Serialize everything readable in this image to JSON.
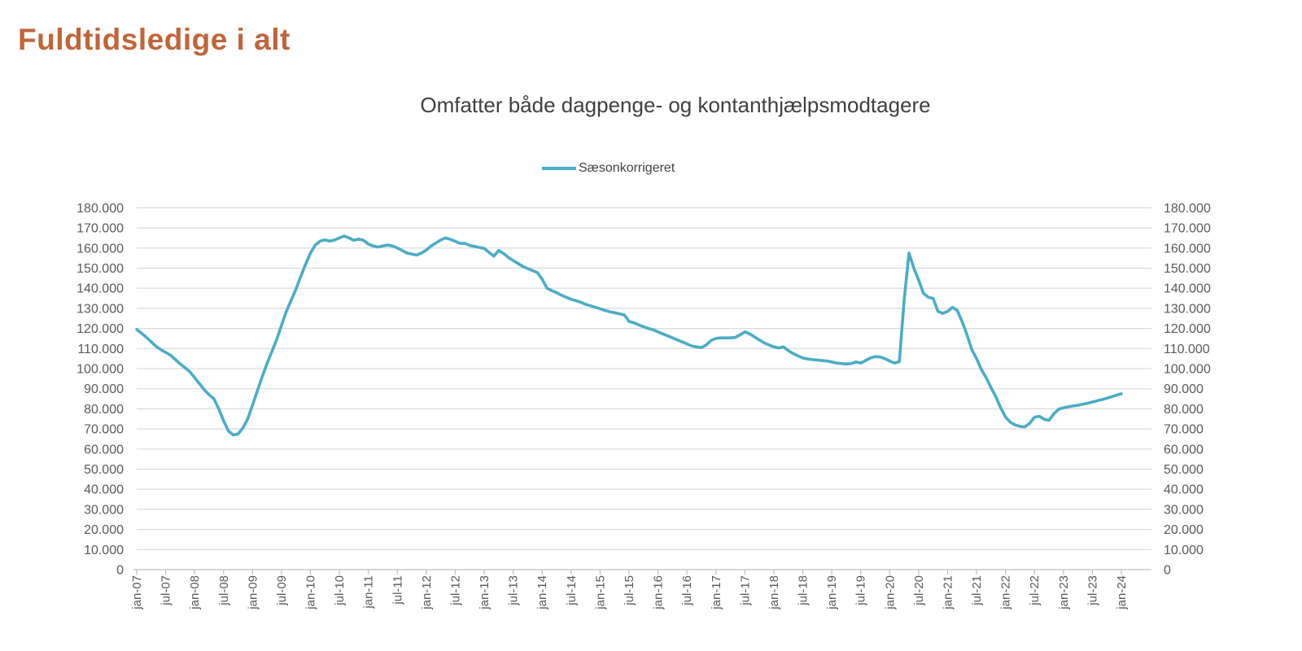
{
  "page": {
    "title": "Fuldtidsledige i alt",
    "title_color": "#C0653A"
  },
  "legend": {
    "label": "Sæsonkorrigeret"
  },
  "chart_data": {
    "type": "line",
    "title": "Omfatter både dagpenge- og kontanthjælpsmodtagere",
    "xlabel": "",
    "ylabel": "",
    "x_start": "jan-07",
    "x_end": "jan-24",
    "x_interval": "month",
    "ylim": [
      0,
      180000
    ],
    "y_step": 10000,
    "grid": true,
    "dual_y_axis": true,
    "legend_position": "top-center",
    "y_tick_labels": [
      "0",
      "10.000",
      "20.000",
      "30.000",
      "40.000",
      "50.000",
      "60.000",
      "70.000",
      "80.000",
      "90.000",
      "100.000",
      "110.000",
      "120.000",
      "130.000",
      "140.000",
      "150.000",
      "160.000",
      "170.000",
      "180.000"
    ],
    "x_tick_labels": [
      "jan-07",
      "jul-07",
      "jan-08",
      "jul-08",
      "jan-09",
      "jul-09",
      "jan-10",
      "jul-10",
      "jan-11",
      "jul-11",
      "jan-12",
      "jul-12",
      "jan-13",
      "jul-13",
      "jan-14",
      "jul-14",
      "jan-15",
      "jul-15",
      "jan-16",
      "jul-16",
      "jan-17",
      "jul-17",
      "jan-18",
      "jul-18",
      "jan-19",
      "jul-19",
      "jan-20",
      "jul-20",
      "jan-21",
      "jul-21",
      "jan-22",
      "jul-22",
      "jan-23",
      "jul-23",
      "jan-24"
    ],
    "x_tick_every_n_points": 6,
    "colors": {
      "line": "#4BACC6",
      "grid": "#D9D9D9",
      "axis": "#BFBFBF",
      "tick_text": "#595959"
    },
    "series": [
      {
        "name": "Sæsonkorrigeret",
        "color": "#4BACC6",
        "values": [
          119500,
          117600,
          115600,
          113300,
          111100,
          109400,
          108100,
          106700,
          104500,
          102400,
          100500,
          98500,
          95500,
          92500,
          89500,
          87000,
          85000,
          80000,
          74000,
          69000,
          67000,
          67500,
          70500,
          75000,
          82000,
          89000,
          96000,
          102500,
          108500,
          114500,
          121500,
          128500,
          134000,
          139500,
          146000,
          152000,
          157500,
          161500,
          163500,
          164000,
          163500,
          164000,
          165000,
          166000,
          165000,
          163800,
          164500,
          163800,
          162000,
          161000,
          160500,
          161000,
          161500,
          161000,
          160000,
          158800,
          157500,
          157000,
          156500,
          157500,
          159000,
          161000,
          162500,
          164000,
          165000,
          164300,
          163300,
          162300,
          162300,
          161300,
          160800,
          160300,
          159800,
          157800,
          156000,
          158800,
          157300,
          155300,
          153800,
          152300,
          150800,
          149800,
          148800,
          147800,
          144500,
          140000,
          138800,
          137800,
          136500,
          135500,
          134500,
          133800,
          133000,
          132000,
          131300,
          130500,
          129800,
          129000,
          128300,
          127800,
          127300,
          126800,
          123500,
          122800,
          121800,
          120800,
          120000,
          119300,
          118300,
          117300,
          116300,
          115300,
          114300,
          113300,
          112300,
          111300,
          110800,
          110500,
          111800,
          114000,
          115000,
          115300,
          115300,
          115300,
          115500,
          116800,
          118300,
          117300,
          115800,
          114300,
          112800,
          111800,
          110800,
          110300,
          110800,
          109000,
          107500,
          106300,
          105300,
          104800,
          104500,
          104300,
          104000,
          103800,
          103300,
          102800,
          102500,
          102300,
          102500,
          103300,
          102800,
          104000,
          105300,
          106000,
          105800,
          105000,
          103800,
          102800,
          103500,
          134000,
          157500,
          150000,
          144000,
          137500,
          135500,
          135000,
          128500,
          127500,
          128500,
          130500,
          129000,
          123500,
          117000,
          109500,
          105000,
          99500,
          95500,
          90500,
          86000,
          80500,
          76000,
          73300,
          72000,
          71300,
          71000,
          72800,
          75800,
          76300,
          74800,
          74300,
          77500,
          79800,
          80500,
          81000,
          81400,
          81800,
          82300,
          82800,
          83400,
          84000,
          84600,
          85300,
          86000,
          86800,
          87500
        ]
      }
    ]
  }
}
